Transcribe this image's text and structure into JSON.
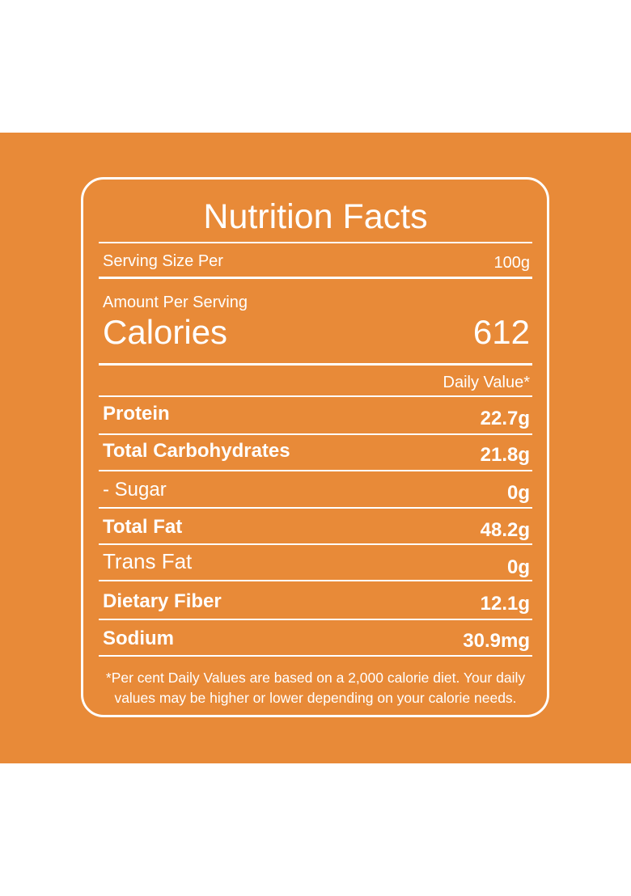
{
  "label": {
    "title": "Nutrition Facts",
    "serving": {
      "label": "Serving Size Per",
      "value": "100g"
    },
    "amount_label": "Amount Per Serving",
    "calories": {
      "label": "Calories",
      "value": "612"
    },
    "daily_value_header": "Daily Value*",
    "nutrients": [
      {
        "name": "Protein",
        "value": "22.7g"
      },
      {
        "name": "Total Carbohydrates",
        "value": "21.8g"
      },
      {
        "name": "- Sugar",
        "value": "0g"
      },
      {
        "name": "Total Fat",
        "value": "48.2g"
      },
      {
        "name": "Trans Fat",
        "value": "0g"
      },
      {
        "name": "Dietary Fiber",
        "value": "12.1g"
      },
      {
        "name": "Sodium",
        "value": "30.9mg"
      }
    ],
    "footnote_line1": "*Per cent Daily Values are based on a 2,000 calorie diet. Your daily",
    "footnote_line2": "values may be higher or lower depending on your calorie needs."
  },
  "colors": {
    "background": "#ffffff",
    "band": "#e88a38",
    "foreground": "#ffffff"
  }
}
